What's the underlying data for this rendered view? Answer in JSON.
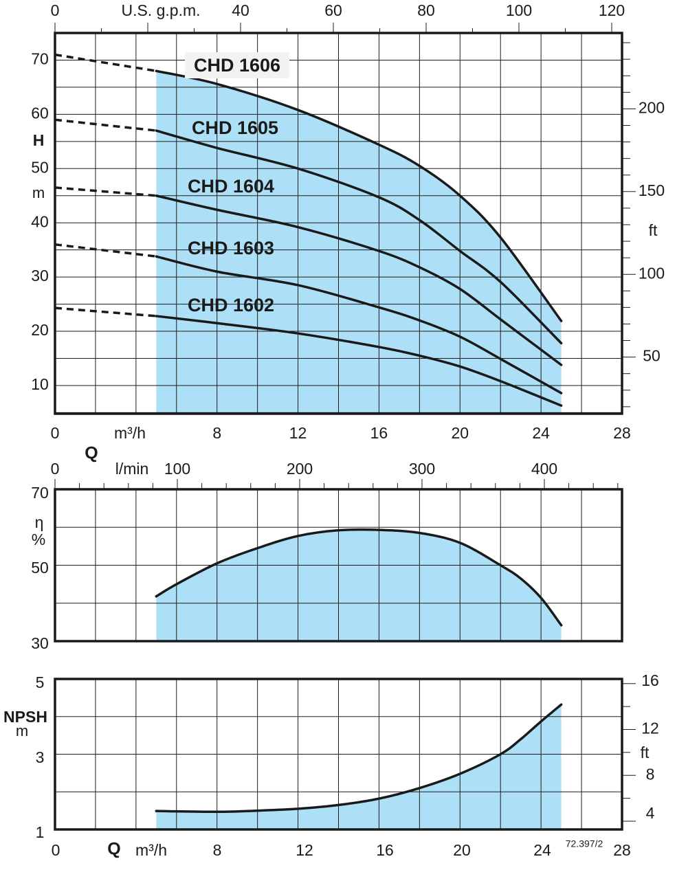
{
  "colors": {
    "fill": "#ade0f7",
    "line": "#1a1a1a",
    "label_bg": "#f2f2f2"
  },
  "code": "72.397/2",
  "chart_data": [
    {
      "id": "head",
      "type": "line",
      "title": "",
      "y_label": "H",
      "y_unit": "m",
      "ylim": [
        4.8,
        75
      ],
      "y_ticks": [
        10,
        20,
        30,
        40,
        50,
        60,
        70
      ],
      "y_grid_step": 5,
      "y2_unit": "ft",
      "y2_ticks": [
        50,
        100,
        150,
        200
      ],
      "x_label": "Q",
      "x_unit": "m³/h",
      "xlim": [
        0,
        28
      ],
      "x_ticks": [
        0,
        8,
        12,
        16,
        20,
        24,
        28
      ],
      "x_grid_step": 2,
      "x2_unit": "U.S. g.p.m.",
      "x2_ticks": [
        0,
        40,
        60,
        80,
        100,
        120
      ],
      "fill_range": [
        5,
        25
      ],
      "series": [
        {
          "name": "CHD 1606",
          "dashed": [
            [
              0,
              71
            ],
            [
              5,
              68
            ]
          ],
          "points": [
            [
              5,
              68
            ],
            [
              8,
              65.6
            ],
            [
              12,
              60.8
            ],
            [
              16,
              54.4
            ],
            [
              18,
              50.5
            ],
            [
              20,
              45
            ],
            [
              22,
              37.3
            ],
            [
              25,
              21.9
            ]
          ]
        },
        {
          "name": "CHD 1605",
          "dashed": [
            [
              0,
              59
            ],
            [
              5,
              57
            ]
          ],
          "points": [
            [
              5,
              57
            ],
            [
              8,
              53.8
            ],
            [
              12,
              50
            ],
            [
              16,
              44.7
            ],
            [
              18,
              40.5
            ],
            [
              20,
              34.8
            ],
            [
              22,
              29.1
            ],
            [
              25,
              17.8
            ]
          ]
        },
        {
          "name": "CHD 1604",
          "dashed": [
            [
              0,
              46.5
            ],
            [
              5,
              45
            ]
          ],
          "points": [
            [
              5,
              45
            ],
            [
              8,
              42.4
            ],
            [
              12,
              39.2
            ],
            [
              16,
              34.8
            ],
            [
              18,
              31.8
            ],
            [
              20,
              27.8
            ],
            [
              22,
              22.2
            ],
            [
              25,
              13.8
            ]
          ]
        },
        {
          "name": "CHD 1603",
          "dashed": [
            [
              0,
              36
            ],
            [
              5,
              33.8
            ]
          ],
          "points": [
            [
              5,
              33.8
            ],
            [
              8,
              31
            ],
            [
              12,
              28.5
            ],
            [
              16,
              24.4
            ],
            [
              18,
              22
            ],
            [
              20,
              19
            ],
            [
              22,
              14.9
            ],
            [
              25,
              8.6
            ]
          ]
        },
        {
          "name": "CHD 1602",
          "dashed": [
            [
              0,
              24.3
            ],
            [
              5,
              22.8
            ]
          ],
          "points": [
            [
              5,
              22.8
            ],
            [
              8,
              21.5
            ],
            [
              12,
              19.6
            ],
            [
              16,
              17.1
            ],
            [
              18,
              15.5
            ],
            [
              20,
              13.5
            ],
            [
              22,
              10.8
            ],
            [
              25,
              6.3
            ]
          ]
        }
      ]
    },
    {
      "id": "efficiency",
      "type": "area",
      "y_label": "η",
      "y_unit": "%",
      "ylim": [
        30,
        70
      ],
      "y_ticks": [
        30,
        50,
        70
      ],
      "y_grid_step": 10,
      "xlim": [
        0,
        28
      ],
      "x_grid_step": 2,
      "x2_unit": "l/min",
      "x2_ticks": [
        0,
        100,
        200,
        300,
        400
      ],
      "series": [
        {
          "name": "Efficiency",
          "points": [
            [
              5,
              41.8
            ],
            [
              6,
              45
            ],
            [
              8,
              50.5
            ],
            [
              10,
              54.5
            ],
            [
              12,
              57.7
            ],
            [
              14,
              59.2
            ],
            [
              16,
              59.3
            ],
            [
              18,
              58.5
            ],
            [
              20,
              55.9
            ],
            [
              22,
              50
            ],
            [
              23,
              46.5
            ],
            [
              24,
              41.4
            ],
            [
              25,
              34.2
            ]
          ]
        }
      ]
    },
    {
      "id": "npsh",
      "type": "area",
      "y_label": "NPSH",
      "y_unit": "m",
      "ylim": [
        1,
        5
      ],
      "y_ticks": [
        1,
        3,
        5
      ],
      "y_grid_step": 1,
      "y2_unit": "ft",
      "y2_ticks": [
        4,
        8,
        12,
        16
      ],
      "x_label": "Q",
      "x_unit": "m³/h",
      "xlim": [
        0,
        28
      ],
      "x_ticks": [
        0,
        8,
        12,
        16,
        20,
        24,
        28
      ],
      "x_grid_step": 2,
      "series": [
        {
          "name": "NPSH",
          "points": [
            [
              5,
              1.49
            ],
            [
              8,
              1.47
            ],
            [
              10,
              1.5
            ],
            [
              12,
              1.55
            ],
            [
              14,
              1.65
            ],
            [
              16,
              1.82
            ],
            [
              18,
              2.1
            ],
            [
              20,
              2.48
            ],
            [
              22,
              3.0
            ],
            [
              23,
              3.4
            ],
            [
              24,
              3.87
            ],
            [
              25,
              4.32
            ]
          ]
        }
      ]
    }
  ]
}
